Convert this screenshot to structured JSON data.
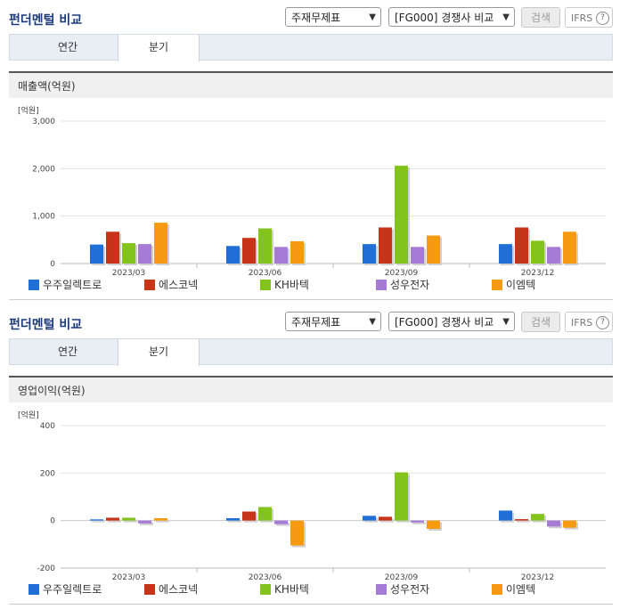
{
  "sections": [
    {
      "title": "펀더멘털 비교",
      "select1": "주재무제표",
      "select2": "[FG000] 경쟁사 비교",
      "search_label": "검색",
      "ifrs_label": "IFRS",
      "tabs": [
        "연간",
        "분기"
      ],
      "active_tab": "분기",
      "metric_label": "매출액(억원)",
      "unit_label": "[억원]"
    },
    {
      "title": "펀더멘털 비교",
      "select1": "주재무제표",
      "select2": "[FG000] 경쟁사 비교",
      "search_label": "검색",
      "ifrs_label": "IFRS",
      "tabs": [
        "연간",
        "분기"
      ],
      "active_tab": "분기",
      "metric_label": "영업이익(억원)",
      "unit_label": "[억원]"
    }
  ],
  "colors": [
    "#1f6fd6",
    "#c8341a",
    "#82c31c",
    "#a57bd6",
    "#f59a12"
  ],
  "chart_data": [
    {
      "type": "bar",
      "categories": [
        "2023/03",
        "2023/06",
        "2023/09",
        "2023/12"
      ],
      "ylim": [
        0,
        3000
      ],
      "yticks": [
        "0",
        "1,000",
        "2,000",
        "3,000"
      ],
      "ytick_values": [
        0,
        1000,
        2000,
        3000
      ],
      "series": [
        {
          "name": "우주일렉트로",
          "values": [
            400,
            370,
            410,
            410
          ]
        },
        {
          "name": "에스코넥",
          "values": [
            670,
            540,
            760,
            760
          ]
        },
        {
          "name": "KH바텍",
          "values": [
            430,
            740,
            2060,
            480
          ]
        },
        {
          "name": "성우전자",
          "values": [
            410,
            350,
            350,
            350
          ]
        },
        {
          "name": "이엠텍",
          "values": [
            860,
            470,
            590,
            670
          ]
        }
      ]
    },
    {
      "type": "bar",
      "categories": [
        "2023/03",
        "2023/06",
        "2023/09",
        "2023/12"
      ],
      "ylim": [
        -200,
        400
      ],
      "yticks": [
        "-200",
        "0",
        "200",
        "400"
      ],
      "ytick_values": [
        -200,
        0,
        200,
        400
      ],
      "series": [
        {
          "name": "우주일렉트로",
          "values": [
            5,
            10,
            20,
            42
          ]
        },
        {
          "name": "에스코넥",
          "values": [
            12,
            38,
            16,
            6
          ]
        },
        {
          "name": "KH바텍",
          "values": [
            12,
            57,
            203,
            28
          ]
        },
        {
          "name": "성우전자",
          "values": [
            -12,
            -15,
            -8,
            -25
          ]
        },
        {
          "name": "이엠텍",
          "values": [
            10,
            -105,
            -35,
            -30
          ]
        }
      ]
    }
  ]
}
